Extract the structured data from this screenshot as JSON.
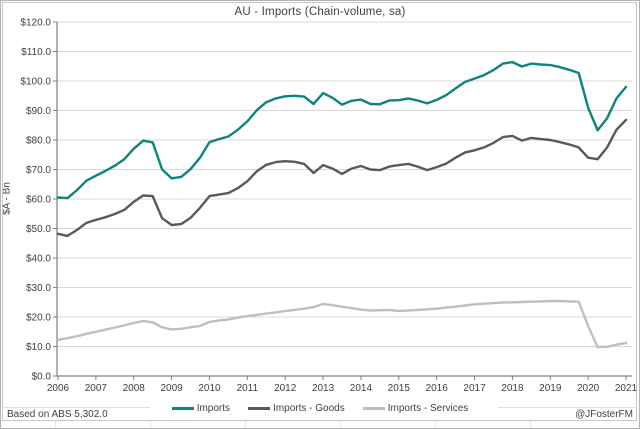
{
  "title": "AU - Imports (Chain-volume, sa)",
  "footer": {
    "source": "Based on ABS 5,302.0",
    "handle": "@JFosterFM"
  },
  "chart_data": {
    "type": "line",
    "title": "AU - Imports (Chain-volume, sa)",
    "xlabel": "",
    "ylabel": "$A - Bn",
    "ylim": [
      0,
      120
    ],
    "y_tick_step": 10,
    "y_tick_labels": [
      "$120.0",
      "$110.0",
      "$100.0",
      "$90.0",
      "$80.0",
      "$70.0",
      "$60.0",
      "$50.0",
      "$40.0",
      "$30.0",
      "$20.0",
      "$10.0",
      "$0.0"
    ],
    "x_tick_labels": [
      "2006",
      "2007",
      "2008",
      "2009",
      "2010",
      "2011",
      "2012",
      "2013",
      "2014",
      "2015",
      "2016",
      "2017",
      "2018",
      "2019",
      "2020",
      "2021"
    ],
    "x_frequency": "quarterly",
    "x_start": "2006-Q1",
    "x_end": "2021-Q1",
    "grid": "horizontal",
    "legend_position": "bottom",
    "series": [
      {
        "name": "Imports",
        "color": "#0d847e",
        "values": [
          60.5,
          60.3,
          63.0,
          66.2,
          67.9,
          69.5,
          71.3,
          73.5,
          77.0,
          79.8,
          79.2,
          70.0,
          67.0,
          67.5,
          70.1,
          74.0,
          79.3,
          80.3,
          81.2,
          83.5,
          86.3,
          90.1,
          92.8,
          94.1,
          94.8,
          95.0,
          94.7,
          92.2,
          95.9,
          94.3,
          92.0,
          93.3,
          93.7,
          92.2,
          92.1,
          93.4,
          93.5,
          94.1,
          93.4,
          92.4,
          93.6,
          95.2,
          97.5,
          99.7,
          100.8,
          102.0,
          103.7,
          105.9,
          106.4,
          104.9,
          105.9,
          105.6,
          105.4,
          104.7,
          103.8,
          102.7,
          91.0,
          83.3,
          87.4,
          94.1,
          98.0
        ]
      },
      {
        "name": "Imports - Goods",
        "color": "#595959",
        "values": [
          48.2,
          47.5,
          49.5,
          51.9,
          52.9,
          53.8,
          54.9,
          56.3,
          59.0,
          61.2,
          61.0,
          53.5,
          51.2,
          51.5,
          53.6,
          57.0,
          61.0,
          61.5,
          62.0,
          63.7,
          66.0,
          69.4,
          71.6,
          72.5,
          72.8,
          72.6,
          71.9,
          68.8,
          71.5,
          70.3,
          68.5,
          70.3,
          71.2,
          70.0,
          69.8,
          71.0,
          71.5,
          71.9,
          71.0,
          69.8,
          70.8,
          72.0,
          74.0,
          75.8,
          76.5,
          77.5,
          79.0,
          81.0,
          81.4,
          79.8,
          80.7,
          80.3,
          80.0,
          79.3,
          78.5,
          77.5,
          74.0,
          73.5,
          77.5,
          83.5,
          86.8
        ]
      },
      {
        "name": "Imports - Services",
        "color": "#bfbfbf",
        "values": [
          12.3,
          12.8,
          13.5,
          14.3,
          15.0,
          15.7,
          16.4,
          17.2,
          18.0,
          18.6,
          18.2,
          16.5,
          15.8,
          16.0,
          16.5,
          17.0,
          18.3,
          18.8,
          19.2,
          19.8,
          20.3,
          20.7,
          21.2,
          21.6,
          22.0,
          22.4,
          22.8,
          23.4,
          24.4,
          24.0,
          23.5,
          23.0,
          22.5,
          22.2,
          22.3,
          22.4,
          22.0,
          22.2,
          22.4,
          22.6,
          22.8,
          23.2,
          23.5,
          23.9,
          24.3,
          24.5,
          24.7,
          24.9,
          25.0,
          25.1,
          25.2,
          25.3,
          25.4,
          25.4,
          25.3,
          25.2,
          17.0,
          9.8,
          9.9,
          10.6,
          11.2
        ]
      }
    ],
    "colors": {
      "gridline": "#d9d9d9",
      "axis": "#808080",
      "tick": "#808080",
      "text": "#404040",
      "chart_border": "#c6c6c6",
      "outer_border": "#b3b3b3"
    }
  }
}
